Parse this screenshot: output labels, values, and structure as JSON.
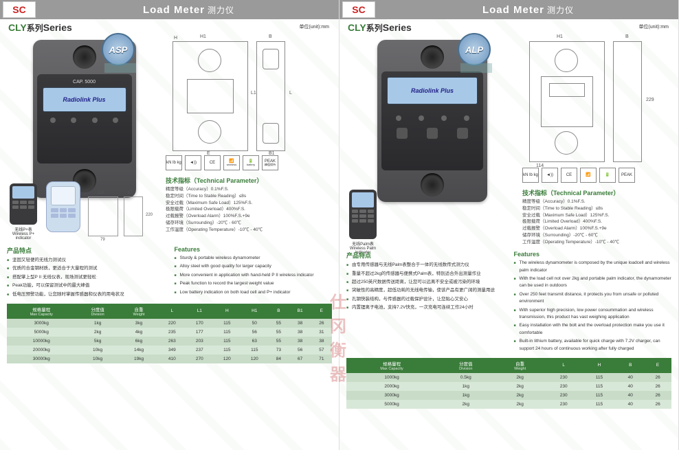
{
  "header": {
    "logo": "SC",
    "title_en": "Load Meter",
    "title_cn": "测力仪"
  },
  "series": {
    "cly": "CLY",
    "cn": "系列",
    "en": "Series",
    "unit": "单位(unit):mm"
  },
  "p1": {
    "badge": "ASP",
    "dev_cap": "CAP. 5000",
    "dev_screen": "Radiolink Plus",
    "remote_label_cn": "无线P+表",
    "remote_label_en": "Wireless P+ indicator",
    "icons": [
      "kN lb kg",
      "◄))",
      "CE",
      "📶",
      "🔋",
      "PEAK"
    ],
    "icon_sub": [
      "",
      "",
      "",
      "wireless",
      "battery",
      "峰值保持"
    ],
    "tech_title": "技术指标（Technical Parameter）",
    "tech": [
      "精度等级（Accuracy）0.1%F.S.",
      "稳定时间（Time to Stable Reading）≤8s",
      "安全过载（Maximum Safe Load）125%F.S.",
      "极限载荷（Limited Overload）400%F.S.",
      "过载报警（Overload Alarm）100%F.S.+9e",
      "储存环境（Surrounding）-20℃ - 60℃",
      "工作温度（Operating Temperature）-10℃ - 40℃"
    ],
    "feat_cn_title": "产品特点",
    "feat_cn": [
      "坚固又轻便的无线力测试仪",
      "优质的合金钢材质，更适合于大量程的测试",
      "搭配掌上型P II 无线仪表，现场测试更轻松",
      "Peak功能，可以保留测试中的最大峰值",
      "低电压预警功能，让您随时掌握传感器和仪表的用电状况"
    ],
    "feat_en_title": "Features",
    "feat_en": [
      "Sturdy & portable wireless dynamometer",
      "Alloy steel with good quality for larger capacity",
      "More convenient in application with hand-held P II wireless indicator",
      "Peak function to record the largest weight value",
      "Low battery indication on both load cell and P+ indicator"
    ],
    "table_head": [
      {
        "cn": "规格量程",
        "en": "Max Capacity"
      },
      {
        "cn": "分度值",
        "en": "Division"
      },
      {
        "cn": "自重",
        "en": "Weight"
      },
      {
        "cn": "L",
        "en": ""
      },
      {
        "cn": "L1",
        "en": ""
      },
      {
        "cn": "H",
        "en": ""
      },
      {
        "cn": "H1",
        "en": ""
      },
      {
        "cn": "B",
        "en": ""
      },
      {
        "cn": "B1",
        "en": ""
      },
      {
        "cn": "E",
        "en": ""
      }
    ],
    "rows": [
      [
        "3000kg",
        "1kg",
        "3kg",
        "220",
        "170",
        "115",
        "50",
        "55",
        "38",
        "26"
      ],
      [
        "5000kg",
        "2kg",
        "4kg",
        "235",
        "177",
        "115",
        "56",
        "55",
        "38",
        "31"
      ],
      [
        "10000kg",
        "5kg",
        "6kg",
        "263",
        "203",
        "115",
        "63",
        "55",
        "38",
        "38"
      ],
      [
        "20000kg",
        "10kg",
        "14kg",
        "349",
        "237",
        "115",
        "115",
        "73",
        "56",
        "57"
      ],
      [
        "30000kg",
        "10kg",
        "19kg",
        "410",
        "270",
        "120",
        "120",
        "84",
        "67",
        "71"
      ]
    ]
  },
  "p2": {
    "badge": "ALP",
    "dev_screen": "Radiolink Plus",
    "remote_label_cn": "无线Palm表",
    "remote_label_en": "Wireless Palm indicator",
    "icons": [
      "kN lb kg",
      "◄))",
      "CE",
      "📶",
      "🔋",
      "PEAK"
    ],
    "tech_title": "技术指标（Technical Parameter）",
    "tech": [
      "精度等级（Accuracy）0.1%F.S.",
      "稳定时间（Time to Stable Reading）≤8s",
      "安全过载（Maximum Safe Load）125%F.S.",
      "极限载荷（Limited Overload）400%F.S.",
      "过载报警（Overload Alarm）100%F.S.+9e",
      "储存环境（Surrounding）-20℃ - 60℃",
      "工作温度（Operating Temperature）-10℃ - 40℃"
    ],
    "feat_cn_title": "产品特点",
    "feat_cn": [
      "由专用传感器与无线Palm表整合于一体的无线数传式测力仪",
      "重量不超过2kg的传感器与便携式Palm表，特别适合外出测量作业",
      "超过250英尺数据传送距离，让您可以远离不安全或被污染的环境",
      "突破性的高精度，超低功耗的无线电传输，使该产品有更广阔的测量用途",
      "孔钢快装结构，与传感器的过载保护设计，让您贴心又安心",
      "内置锂离子电池，支持7.2V快充，一次充电可连续工作24小时"
    ],
    "feat_en_title": "Features",
    "feat_en": [
      "The wireless dynamometer is composed by the unique loadcell and wireless palm indicator",
      "With the load cell not over 2kg and portable palm indicator, the dynamometer can be used in outdoors",
      "Over 250 feet transmit distance, it protects you from unsafe or polluted environment",
      "With superior high precision, low power consummation and wireless transmission, this product has vast weighing application",
      "Easy installation with the bolt and the overload protection make you use it comfortable",
      "Built-in lithium battery, available for quick charge with 7.2V charger, can support 24 hours of continuous working after fully charged"
    ],
    "table_head": [
      {
        "cn": "规格量程",
        "en": "Max Capacity"
      },
      {
        "cn": "分度值",
        "en": "Division"
      },
      {
        "cn": "自重",
        "en": "Weight"
      },
      {
        "cn": "L",
        "en": ""
      },
      {
        "cn": "H",
        "en": ""
      },
      {
        "cn": "B",
        "en": ""
      },
      {
        "cn": "E",
        "en": ""
      }
    ],
    "rows": [
      [
        "1000kg",
        "0.5kg",
        "2kg",
        "230",
        "115",
        "40",
        "26"
      ],
      [
        "2000kg",
        "1kg",
        "2kg",
        "230",
        "115",
        "40",
        "26"
      ],
      [
        "3000kg",
        "1kg",
        "2kg",
        "230",
        "115",
        "40",
        "26"
      ],
      [
        "5000kg",
        "2kg",
        "2kg",
        "230",
        "115",
        "40",
        "26"
      ]
    ]
  },
  "watermark": "仕冈衡器",
  "diagram": {
    "H1": "H1",
    "H": "H",
    "B": "B",
    "B1": "B1",
    "L": "L",
    "L1": "L1",
    "E": "E"
  },
  "colors": {
    "accent": "#3a7c3a",
    "header": "#9a9a9b",
    "row_a": "#c8dcc8",
    "row_b": "#d8e8d8"
  }
}
